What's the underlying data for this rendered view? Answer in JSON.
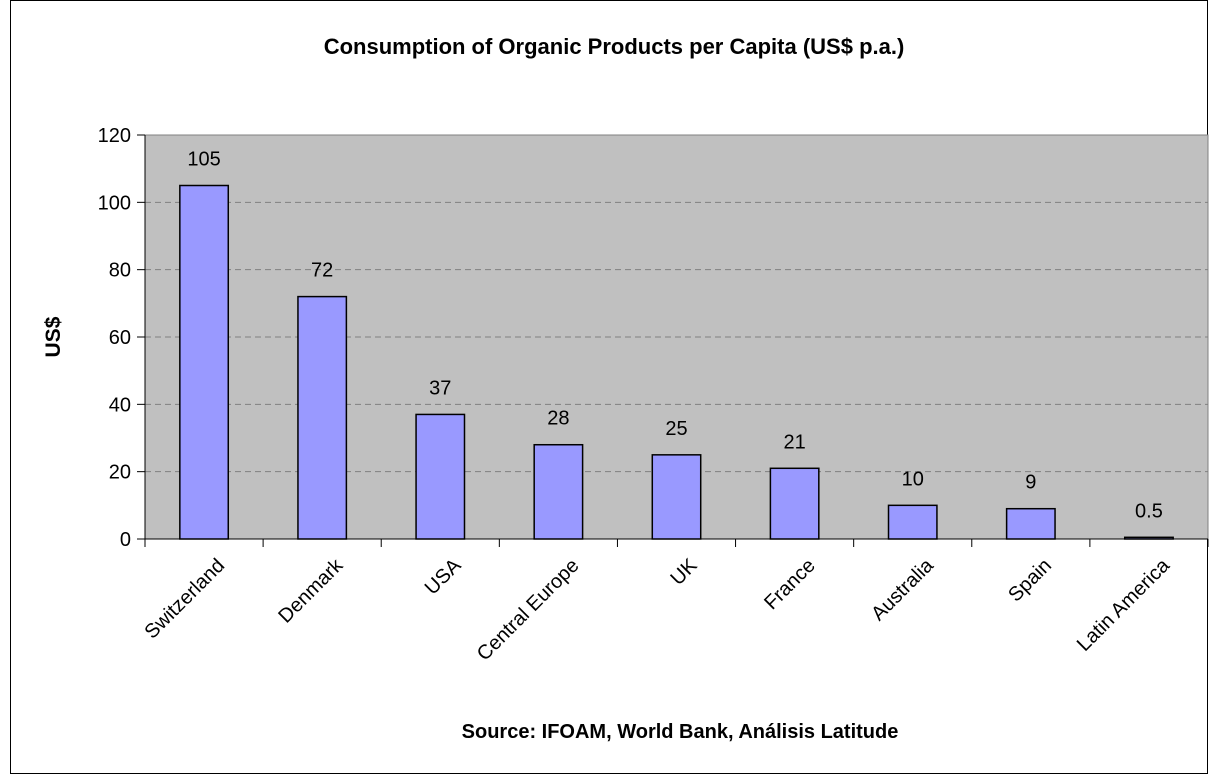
{
  "chart_data": {
    "type": "bar",
    "title": "Consumption of Organic Products per Capita (US$ p.a.)",
    "xlabel": "Source: IFOAM, World Bank, Análisis Latitude",
    "ylabel": "US$",
    "categories": [
      "Switzerland",
      "Denmark",
      "USA",
      "Central Europe",
      "UK",
      "France",
      "Australia",
      "Spain",
      "Latin America"
    ],
    "values": [
      105,
      72,
      37,
      28,
      25,
      21,
      10,
      9,
      0.5
    ],
    "data_labels": [
      "105",
      "72",
      "37",
      "28",
      "25",
      "21",
      "10",
      "9",
      "0.5"
    ],
    "ylim": [
      0,
      120
    ],
    "yticks": [
      0,
      20,
      40,
      60,
      80,
      100,
      120
    ],
    "grid": true,
    "colors": {
      "bar_fill": "#9999ff",
      "bar_stroke": "#000000",
      "plot_background": "#c0c0c0",
      "gridline": "#808080"
    }
  }
}
